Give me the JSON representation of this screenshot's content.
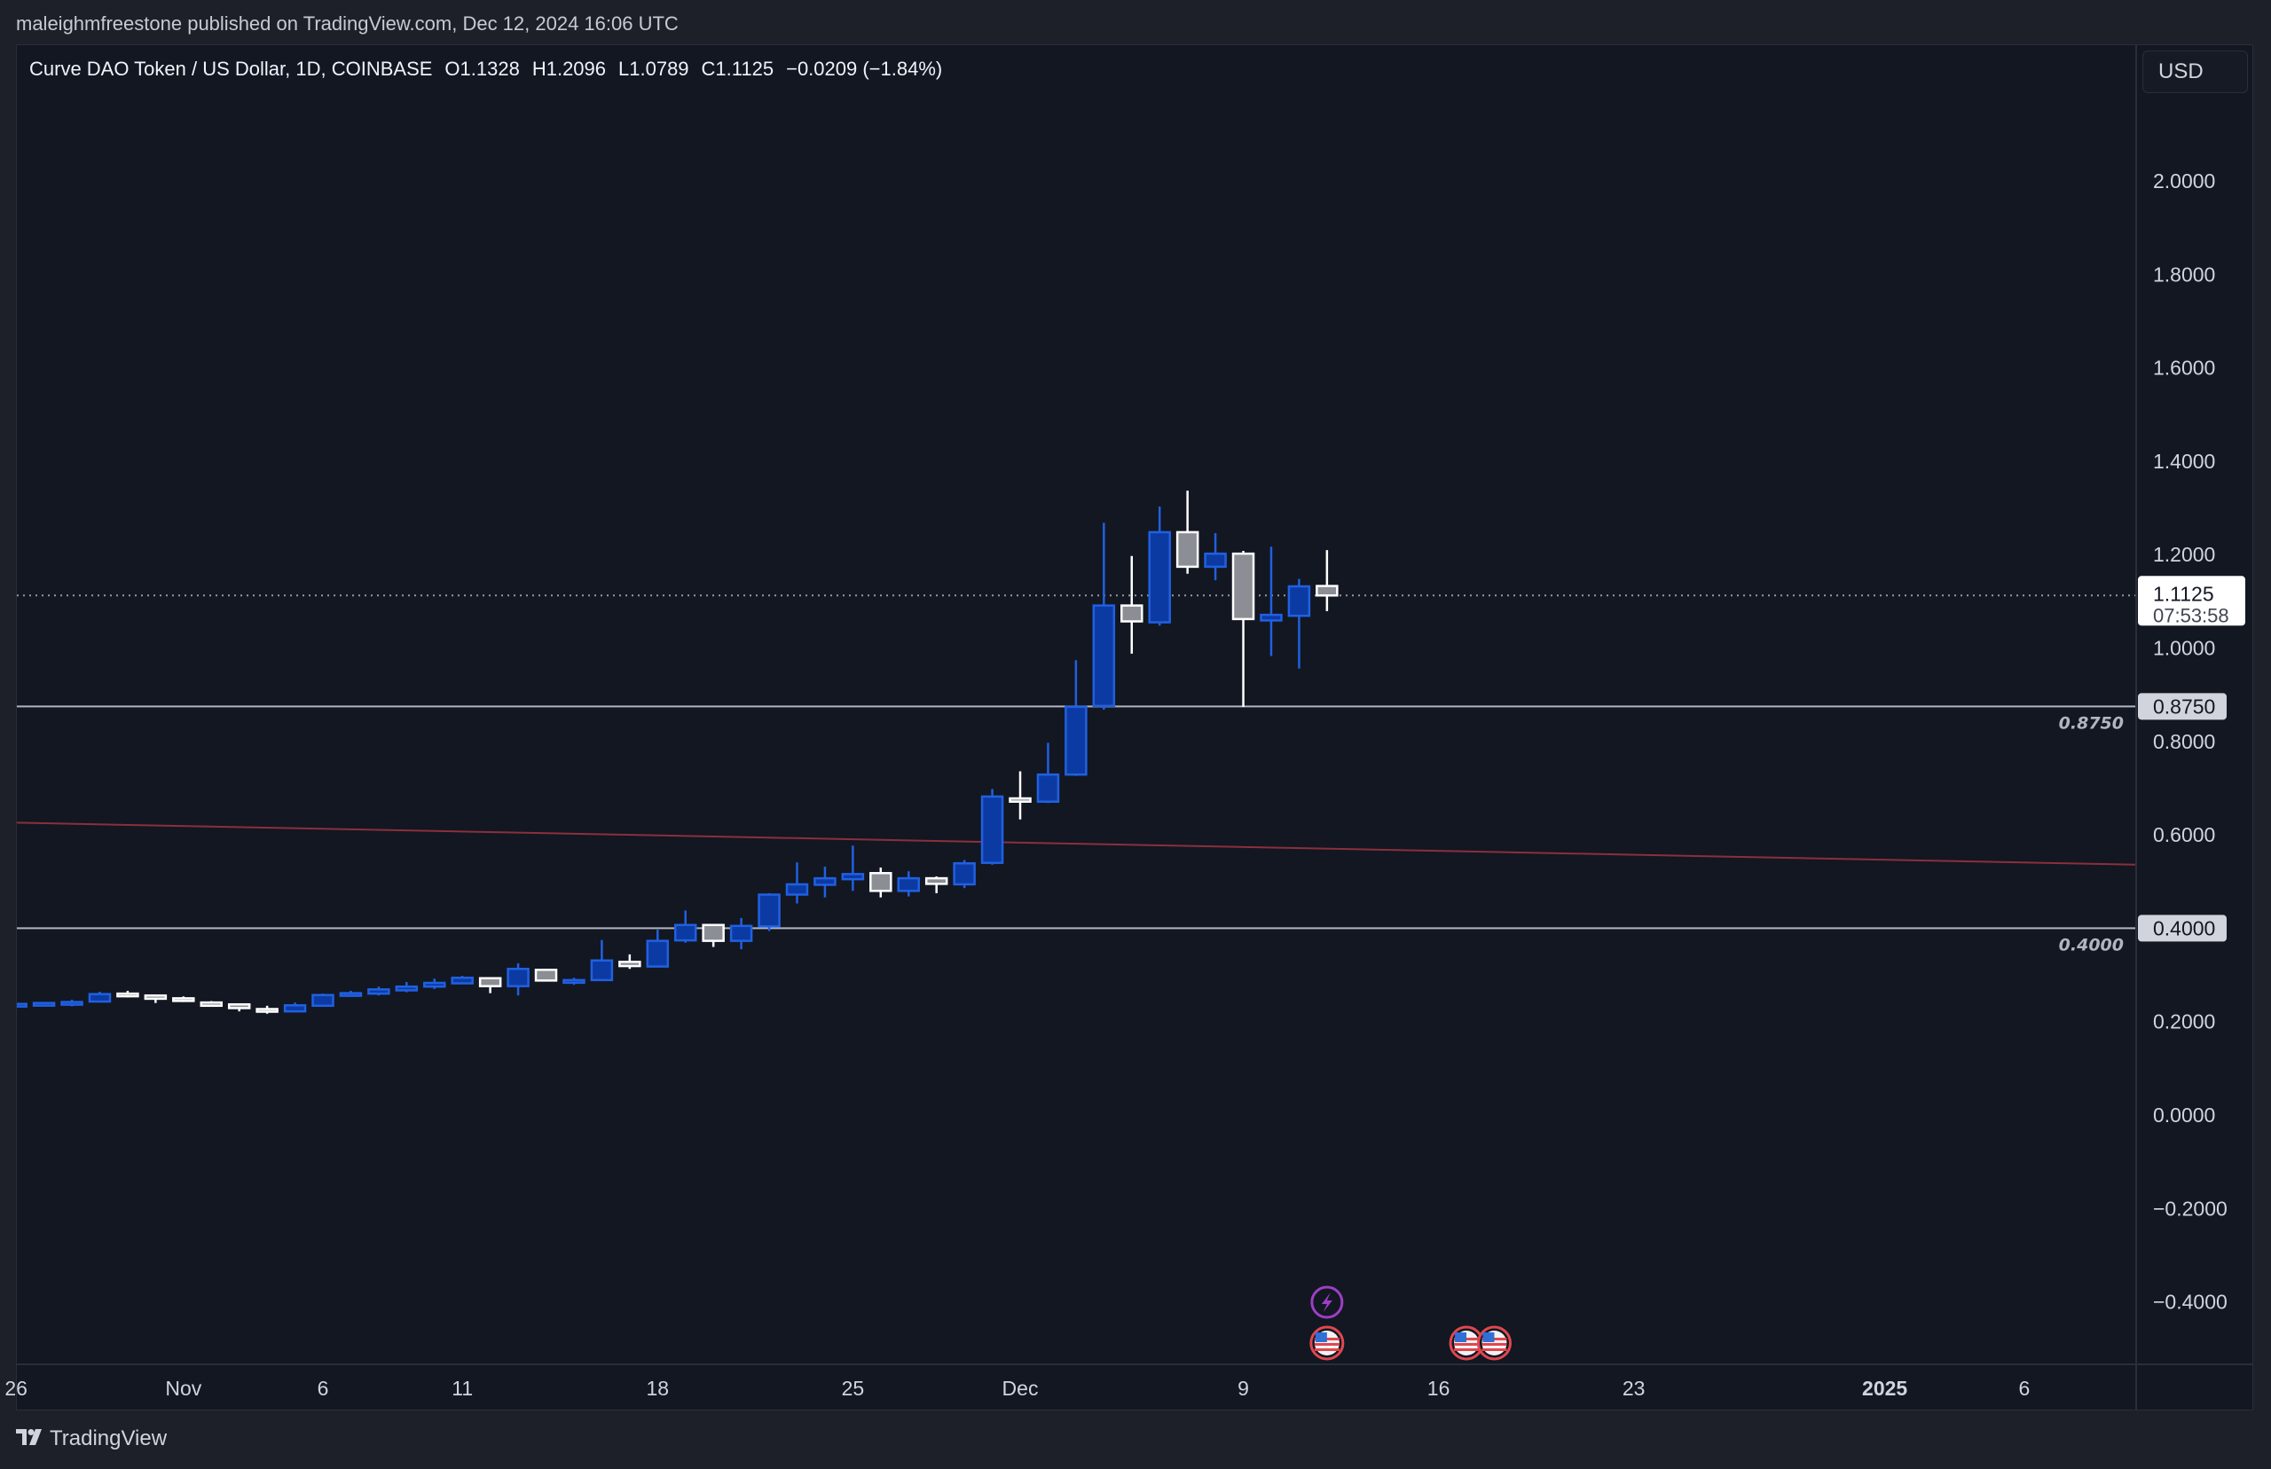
{
  "header": {
    "published": "maleighmfreestone published on TradingView.com, Dec 12, 2024 16:06 UTC"
  },
  "legend": {
    "symbol": "Curve DAO Token / US Dollar, 1D, COINBASE",
    "open": "O1.1328",
    "high": "H1.2096",
    "low": "L1.0789",
    "close": "C1.1125",
    "change": "−0.0209 (−1.84%)"
  },
  "currency_button": "USD",
  "footer": {
    "brand": "TradingView",
    "logo": "17"
  },
  "colors": {
    "up_fill": "#0c3aa3",
    "up_border": "#2160e0",
    "down_fill": "#8b8e94",
    "down_border": "#ffffff",
    "trendline": "#8c2f3c",
    "hline": "#b2b5be"
  },
  "chart_data": {
    "type": "candlestick",
    "title": "Curve DAO Token / US Dollar, 1D, COINBASE",
    "ylim": [
      -0.534,
      2.289
    ],
    "price_ticks": [
      {
        "v": 2.0,
        "label": "2.0000"
      },
      {
        "v": 1.8,
        "label": "1.8000"
      },
      {
        "v": 1.6,
        "label": "1.6000"
      },
      {
        "v": 1.4,
        "label": "1.4000"
      },
      {
        "v": 1.2,
        "label": "1.2000"
      },
      {
        "v": 1.0,
        "label": "1.0000"
      },
      {
        "v": 0.8,
        "label": "0.8000"
      },
      {
        "v": 0.6,
        "label": "0.6000"
      },
      {
        "v": 0.2,
        "label": "0.2000"
      },
      {
        "v": 0.0,
        "label": "0.0000"
      },
      {
        "v": -0.2,
        "label": "−0.2000"
      },
      {
        "v": -0.4,
        "label": "−0.4000"
      }
    ],
    "time_ticks": [
      {
        "date": "2024-10-26",
        "label": "26"
      },
      {
        "date": "2024-11-01",
        "label": "Nov"
      },
      {
        "date": "2024-11-06",
        "label": "6"
      },
      {
        "date": "2024-11-11",
        "label": "11"
      },
      {
        "date": "2024-11-18",
        "label": "18"
      },
      {
        "date": "2024-11-25",
        "label": "25"
      },
      {
        "date": "2024-12-01",
        "label": "Dec"
      },
      {
        "date": "2024-12-09",
        "label": "9"
      },
      {
        "date": "2024-12-16",
        "label": "16"
      },
      {
        "date": "2024-12-23",
        "label": "23"
      },
      {
        "date": "2025-01-01",
        "label": "2025",
        "bold": true
      },
      {
        "date": "2025-01-06",
        "label": "6"
      }
    ],
    "candles_fields": [
      "date",
      "open",
      "high",
      "low",
      "close"
    ],
    "candles": [
      [
        "2024-10-26",
        0.234,
        0.239,
        0.233,
        0.238
      ],
      [
        "2024-10-27",
        0.238,
        0.241,
        0.237,
        0.24
      ],
      [
        "2024-10-28",
        0.24,
        0.247,
        0.233,
        0.242
      ],
      [
        "2024-10-29",
        0.243,
        0.264,
        0.242,
        0.259
      ],
      [
        "2024-10-30",
        0.26,
        0.266,
        0.252,
        0.258
      ],
      [
        "2024-10-31",
        0.256,
        0.258,
        0.24,
        0.249
      ],
      [
        "2024-11-01",
        0.25,
        0.254,
        0.242,
        0.245
      ],
      [
        "2024-11-02",
        0.241,
        0.244,
        0.232,
        0.234
      ],
      [
        "2024-11-03",
        0.237,
        0.238,
        0.222,
        0.229
      ],
      [
        "2024-11-04",
        0.227,
        0.234,
        0.217,
        0.225
      ],
      [
        "2024-11-05",
        0.222,
        0.241,
        0.221,
        0.235
      ],
      [
        "2024-11-06",
        0.234,
        0.26,
        0.233,
        0.257
      ],
      [
        "2024-11-07",
        0.258,
        0.266,
        0.255,
        0.261
      ],
      [
        "2024-11-08",
        0.26,
        0.275,
        0.256,
        0.269
      ],
      [
        "2024-11-09",
        0.267,
        0.285,
        0.263,
        0.275
      ],
      [
        "2024-11-10",
        0.275,
        0.292,
        0.27,
        0.283
      ],
      [
        "2024-11-11",
        0.282,
        0.298,
        0.281,
        0.294
      ],
      [
        "2024-11-12",
        0.293,
        0.294,
        0.261,
        0.276
      ],
      [
        "2024-11-13",
        0.276,
        0.325,
        0.256,
        0.313
      ],
      [
        "2024-11-14",
        0.311,
        0.312,
        0.286,
        0.288
      ],
      [
        "2024-11-15",
        0.288,
        0.294,
        0.279,
        0.289
      ],
      [
        "2024-11-16",
        0.289,
        0.375,
        0.287,
        0.331
      ],
      [
        "2024-11-17",
        0.328,
        0.344,
        0.313,
        0.319
      ],
      [
        "2024-11-18",
        0.318,
        0.397,
        0.316,
        0.373
      ],
      [
        "2024-11-19",
        0.374,
        0.438,
        0.369,
        0.407
      ],
      [
        "2024-11-20",
        0.407,
        0.408,
        0.36,
        0.373
      ],
      [
        "2024-11-21",
        0.373,
        0.422,
        0.355,
        0.405
      ],
      [
        "2024-11-22",
        0.404,
        0.475,
        0.394,
        0.472
      ],
      [
        "2024-11-23",
        0.472,
        0.541,
        0.453,
        0.494
      ],
      [
        "2024-11-24",
        0.493,
        0.532,
        0.466,
        0.507
      ],
      [
        "2024-11-25",
        0.505,
        0.577,
        0.48,
        0.516
      ],
      [
        "2024-11-26",
        0.518,
        0.53,
        0.466,
        0.48
      ],
      [
        "2024-11-27",
        0.48,
        0.522,
        0.468,
        0.507
      ],
      [
        "2024-11-28",
        0.507,
        0.511,
        0.475,
        0.495
      ],
      [
        "2024-11-29",
        0.494,
        0.546,
        0.486,
        0.539
      ],
      [
        "2024-11-30",
        0.54,
        0.698,
        0.536,
        0.682
      ],
      [
        "2024-12-01",
        0.678,
        0.736,
        0.633,
        0.671
      ],
      [
        "2024-12-02",
        0.671,
        0.797,
        0.668,
        0.729
      ],
      [
        "2024-12-03",
        0.729,
        0.974,
        0.726,
        0.874
      ],
      [
        "2024-12-04",
        0.876,
        1.268,
        0.868,
        1.091
      ],
      [
        "2024-12-05",
        1.091,
        1.197,
        0.988,
        1.057
      ],
      [
        "2024-12-06",
        1.055,
        1.303,
        1.048,
        1.248
      ],
      [
        "2024-12-07",
        1.248,
        1.337,
        1.159,
        1.174
      ],
      [
        "2024-12-08",
        1.174,
        1.246,
        1.145,
        1.202
      ],
      [
        "2024-12-09",
        1.202,
        1.208,
        0.874,
        1.062
      ],
      [
        "2024-12-10",
        1.059,
        1.217,
        0.983,
        1.071
      ],
      [
        "2024-12-11",
        1.069,
        1.148,
        0.956,
        1.132
      ],
      [
        "2024-12-12",
        1.1328,
        1.2096,
        1.0789,
        1.1125
      ]
    ],
    "horizontal_lines": [
      {
        "value": 0.875,
        "label": "0.8750"
      },
      {
        "value": 0.4,
        "label": "0.4000"
      }
    ],
    "trendline": {
      "start": {
        "date": "2024-10-26",
        "value": 0.626
      },
      "end": {
        "date": "2025-01-10",
        "value": 0.536
      }
    },
    "last_price": {
      "value": 1.1125,
      "label": "1.1125",
      "countdown": "07:53:58"
    },
    "events": [
      {
        "type": "lightning",
        "date": "2024-12-12",
        "row": 0
      },
      {
        "type": "us-flag",
        "date": "2024-12-12",
        "row": 1
      },
      {
        "type": "us-flag",
        "date": "2024-12-17",
        "row": 1
      },
      {
        "type": "us-flag",
        "date": "2024-12-18",
        "row": 1
      }
    ]
  }
}
